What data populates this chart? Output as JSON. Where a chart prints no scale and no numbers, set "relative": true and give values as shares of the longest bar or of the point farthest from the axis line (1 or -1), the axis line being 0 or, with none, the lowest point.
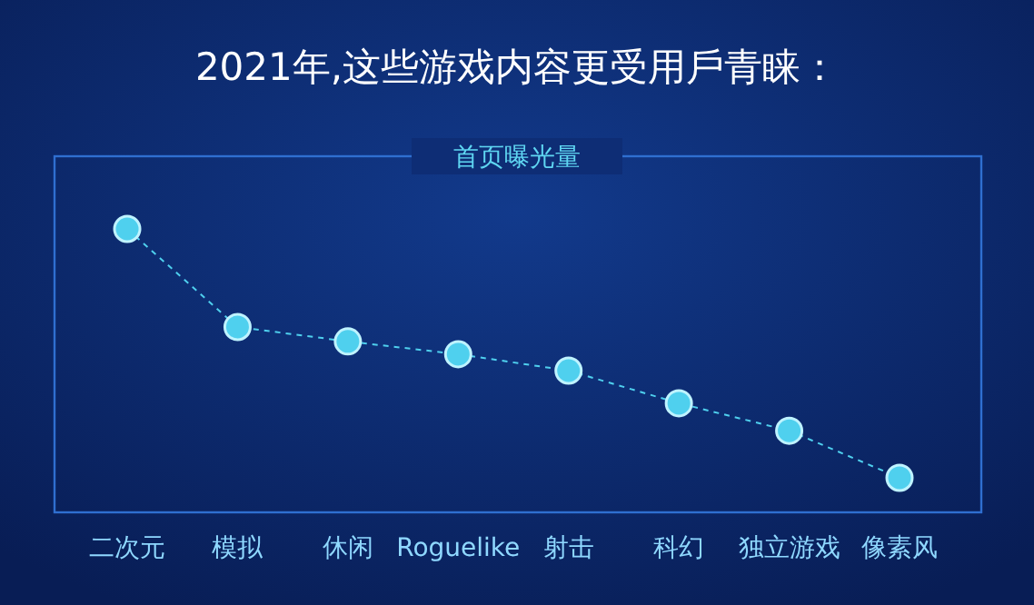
{
  "chart_data": {
    "type": "line",
    "title": "2021年,这些游戏内容更受用戶青睐：",
    "subtitle": "首页曝光量",
    "categories": [
      "二次元",
      "模拟",
      "休闲",
      "Roguelike",
      "射击",
      "科幻",
      "独立游戏",
      "像素风"
    ],
    "series": [
      {
        "color": "#4fd0ee",
        "values": [
          1,
          0.654,
          0.603,
          0.558,
          0.5,
          0.385,
          0.288,
          0.122
        ]
      }
    ],
    "relative": true,
    "marker": "circle",
    "line_style": "dashed"
  }
}
